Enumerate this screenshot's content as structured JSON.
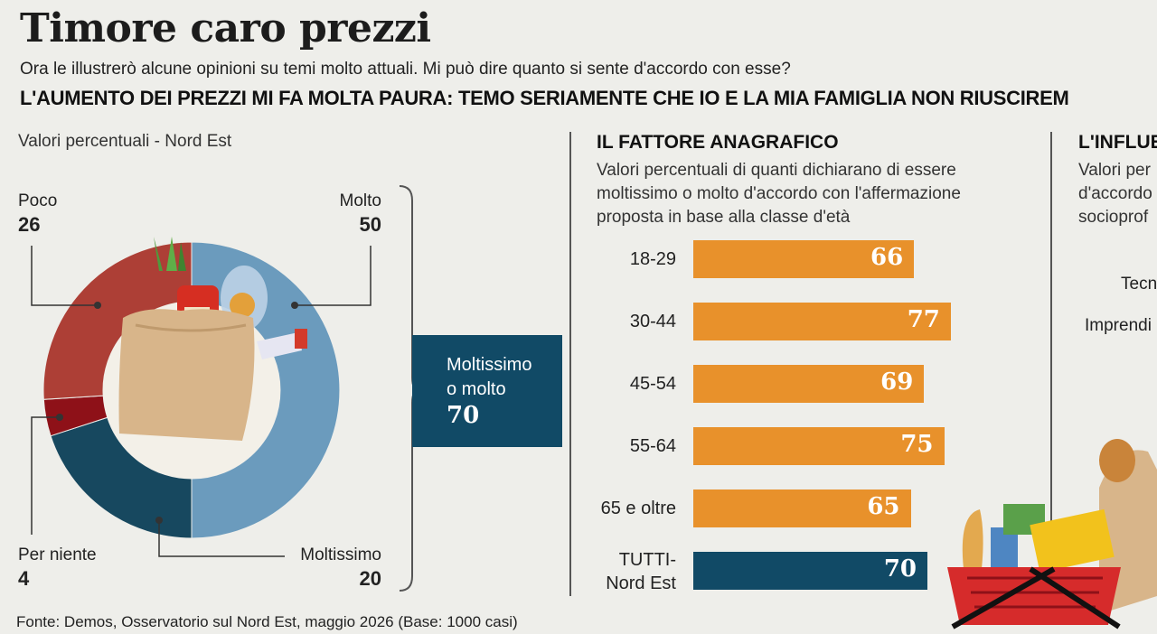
{
  "title": "Timore caro prezzi",
  "question": "Ora le illustrerò alcune opinioni su temi molto attuali. Mi può dire quanto si sente d'accordo con esse?",
  "statement": "L'AUMENTO DEI PREZZI MI FA MOLTA PAURA: TEMO SERIAMENTE CHE IO E LA MIA FAMIGLIA NON RIUSCIREM",
  "donut_note": "Valori percentuali - Nord Est",
  "callout": {
    "label_line1": "Moltissimo",
    "label_line2": "o molto",
    "value": "70"
  },
  "section_age": {
    "title": "IL FATTORE ANAGRAFICO",
    "subtitle_line1": "Valori percentuali di quanti dichiarano di essere",
    "subtitle_line2": "moltissimo o molto d'accordo con l'affermazione",
    "subtitle_line3": "proposta in base alla classe d'età"
  },
  "section_prof": {
    "title": "L'INFLUE",
    "subtitle_line1": "Valori per",
    "subtitle_line2": "d'accordo",
    "subtitle_line3": "socioprof",
    "rows": [
      "Tecn",
      "Imprendi"
    ]
  },
  "source": "Fonte: Demos, Osservatorio sul Nord Est, maggio 2026 (Base: 1000 casi)",
  "colors": {
    "molto": "#6b9bbd",
    "moltissimo": "#17485f",
    "poco": "#ad3f36",
    "per_niente": "#8e1118",
    "bar": "#e8912b",
    "bar_total": "#114a66"
  },
  "chart_data": [
    {
      "type": "pie",
      "variant": "donut",
      "slices": [
        {
          "label": "Molto",
          "value": 50
        },
        {
          "label": "Moltissimo",
          "value": 20
        },
        {
          "label": "Per niente",
          "value": 4
        },
        {
          "label": "Poco",
          "value": 26
        }
      ]
    },
    {
      "type": "bar",
      "orientation": "horizontal",
      "categories": [
        "18-29",
        "30-44",
        "45-54",
        "55-64",
        "65 e oltre",
        "TUTTI-\nNord Est"
      ],
      "values": [
        66,
        77,
        69,
        75,
        65,
        70
      ]
    }
  ]
}
